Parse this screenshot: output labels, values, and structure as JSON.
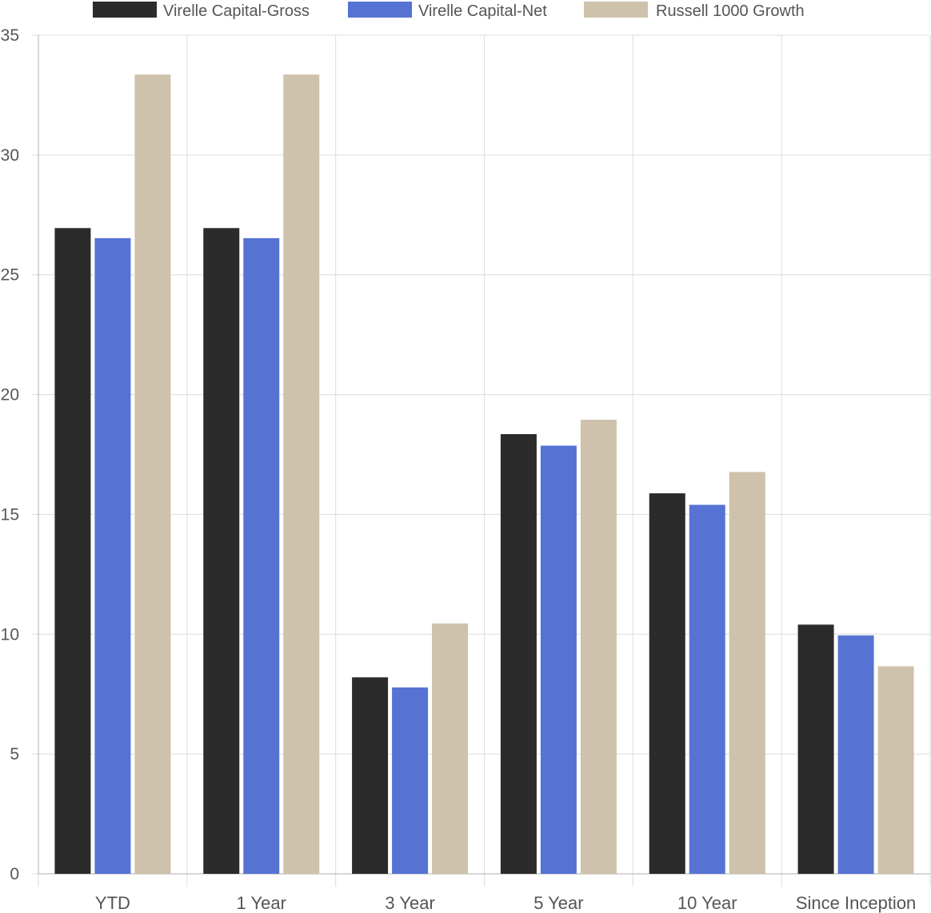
{
  "chart_data": {
    "type": "bar",
    "title": "",
    "xlabel": "",
    "ylabel": "",
    "categories": [
      "YTD",
      "1 Year",
      "3 Year",
      "5 Year",
      "10 Year",
      "Since Inception"
    ],
    "series": [
      {
        "name": "Virelle Capital-Gross",
        "color": "#2b2b2b",
        "values": [
          26.95,
          26.95,
          8.2,
          18.35,
          15.88,
          10.4
        ]
      },
      {
        "name": "Virelle Capital-Net",
        "color": "#5673d4",
        "values": [
          26.53,
          26.53,
          7.78,
          17.87,
          15.4,
          9.95
        ]
      },
      {
        "name": "Russell 1000 Growth",
        "color": "#cec2ac",
        "values": [
          33.36,
          33.36,
          10.45,
          18.95,
          16.77,
          8.66
        ]
      }
    ],
    "ylim": [
      0,
      35
    ],
    "yticks": [
      0,
      5,
      10,
      15,
      20,
      25,
      30,
      35
    ],
    "grid": true,
    "legend_position": "top"
  }
}
